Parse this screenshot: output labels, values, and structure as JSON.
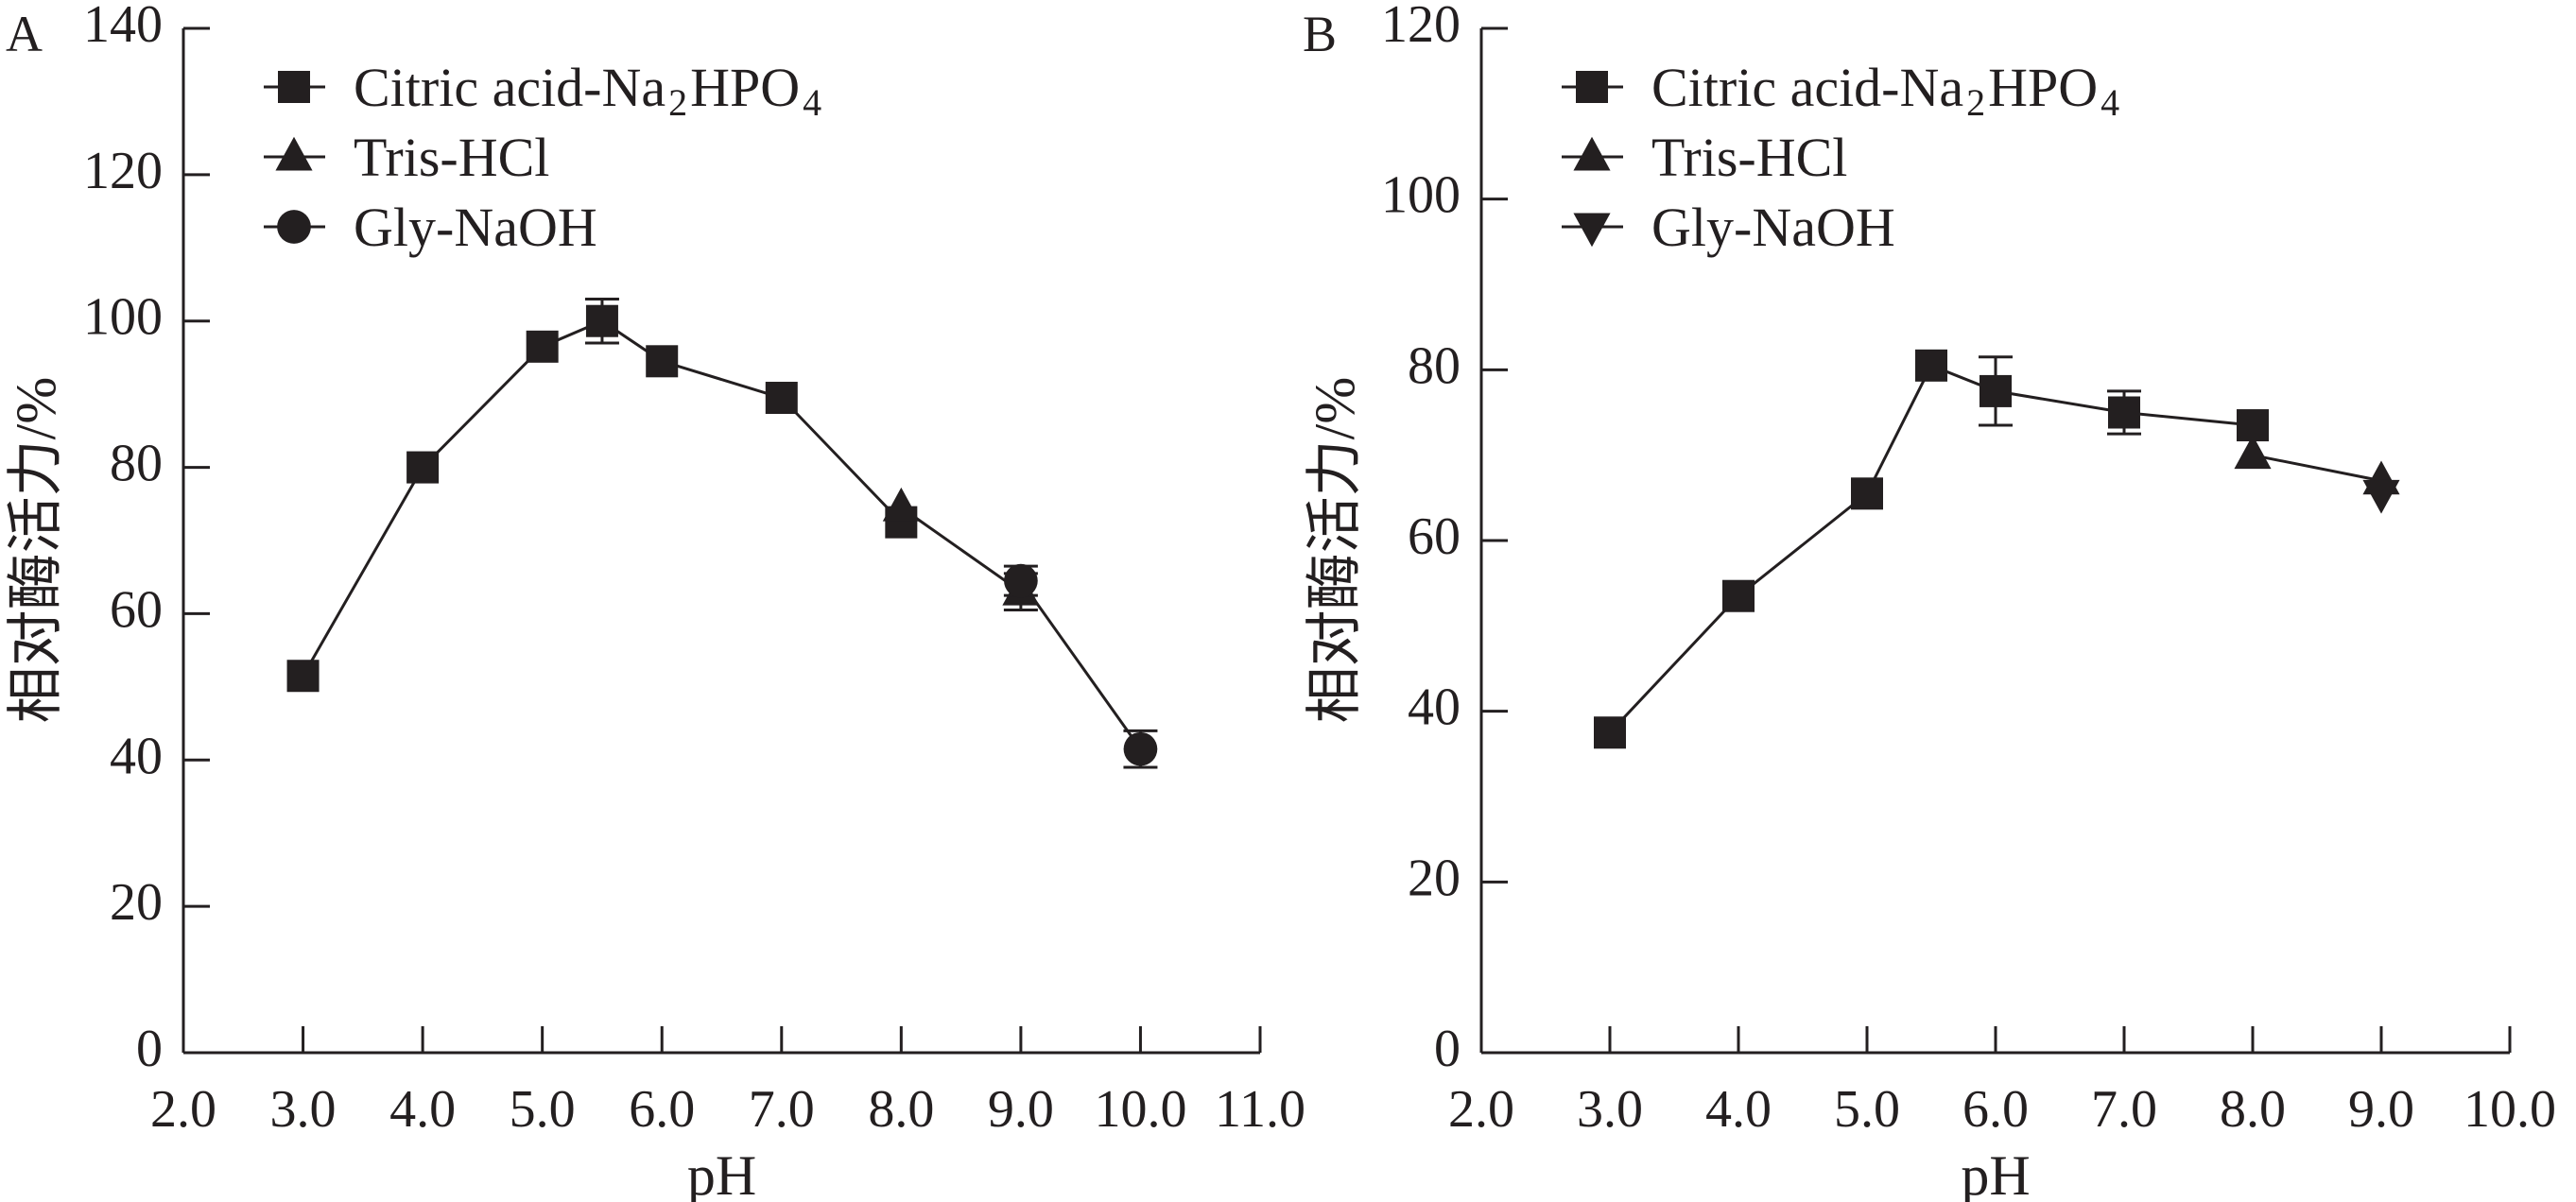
{
  "chart_data": [
    {
      "type": "line",
      "panel_label": "A",
      "xlabel": "pH",
      "ylabel": "相对酶活力/%",
      "xlim": [
        2.0,
        11.0
      ],
      "ylim": [
        0,
        140
      ],
      "xticks": [
        "2.0",
        "3.0",
        "4.0",
        "5.0",
        "6.0",
        "7.0",
        "8.0",
        "9.0",
        "10.0",
        "11.0"
      ],
      "yticks": [
        "0",
        "20",
        "40",
        "60",
        "80",
        "100",
        "120",
        "140"
      ],
      "legend_position": "top-left",
      "series": [
        {
          "name": "Citric acid-Na2HPO4",
          "name_main": "Citric acid-Na",
          "name_sub1": "2",
          "name_mid": "HPO",
          "name_sub2": "4",
          "marker": "square",
          "x": [
            3.0,
            4.0,
            5.0,
            5.5,
            6.0,
            7.0,
            8.0
          ],
          "y": [
            51.5,
            80,
            96.5,
            100,
            94.5,
            89.5,
            72.5
          ],
          "err": [
            0,
            0,
            0,
            3,
            0,
            0,
            0
          ]
        },
        {
          "name": "Tris-HCl",
          "marker": "triangle-up",
          "x": [
            8.0,
            9.0
          ],
          "y": [
            74.5,
            63
          ],
          "err": [
            0,
            2.5
          ]
        },
        {
          "name": "Gly-NaOH",
          "marker": "circle",
          "x": [
            9.0,
            10.0
          ],
          "y": [
            64.5,
            41.5
          ],
          "err": [
            2,
            2.5
          ]
        }
      ]
    },
    {
      "type": "line",
      "panel_label": "B",
      "xlabel": "pH",
      "ylabel": "相对酶活力/%",
      "xlim": [
        2.0,
        10.0
      ],
      "ylim": [
        0,
        120
      ],
      "xticks": [
        "2.0",
        "3.0",
        "4.0",
        "5.0",
        "6.0",
        "7.0",
        "8.0",
        "9.0",
        "10.0"
      ],
      "yticks": [
        "0",
        "20",
        "40",
        "60",
        "80",
        "100",
        "120"
      ],
      "legend_position": "top-left",
      "series": [
        {
          "name": "Citric acid-Na2HPO4",
          "name_main": "Citric acid-Na",
          "name_sub1": "2",
          "name_mid": "HPO",
          "name_sub2": "4",
          "marker": "square",
          "x": [
            3.0,
            4.0,
            5.0,
            5.5,
            6.0,
            7.0,
            8.0
          ],
          "y": [
            37.5,
            53.5,
            65.5,
            80.5,
            77.5,
            75,
            73.5
          ],
          "err": [
            0,
            0,
            0,
            0,
            4,
            2.5,
            0
          ]
        },
        {
          "name": "Tris-HCl",
          "marker": "triangle-up",
          "x": [
            8.0,
            9.0
          ],
          "y": [
            70,
            67
          ],
          "err": [
            0,
            0
          ]
        },
        {
          "name": "Gly-NaOH",
          "marker": "triangle-down",
          "x": [
            9.0
          ],
          "y": [
            65.5
          ],
          "err": [
            0
          ]
        }
      ]
    }
  ]
}
